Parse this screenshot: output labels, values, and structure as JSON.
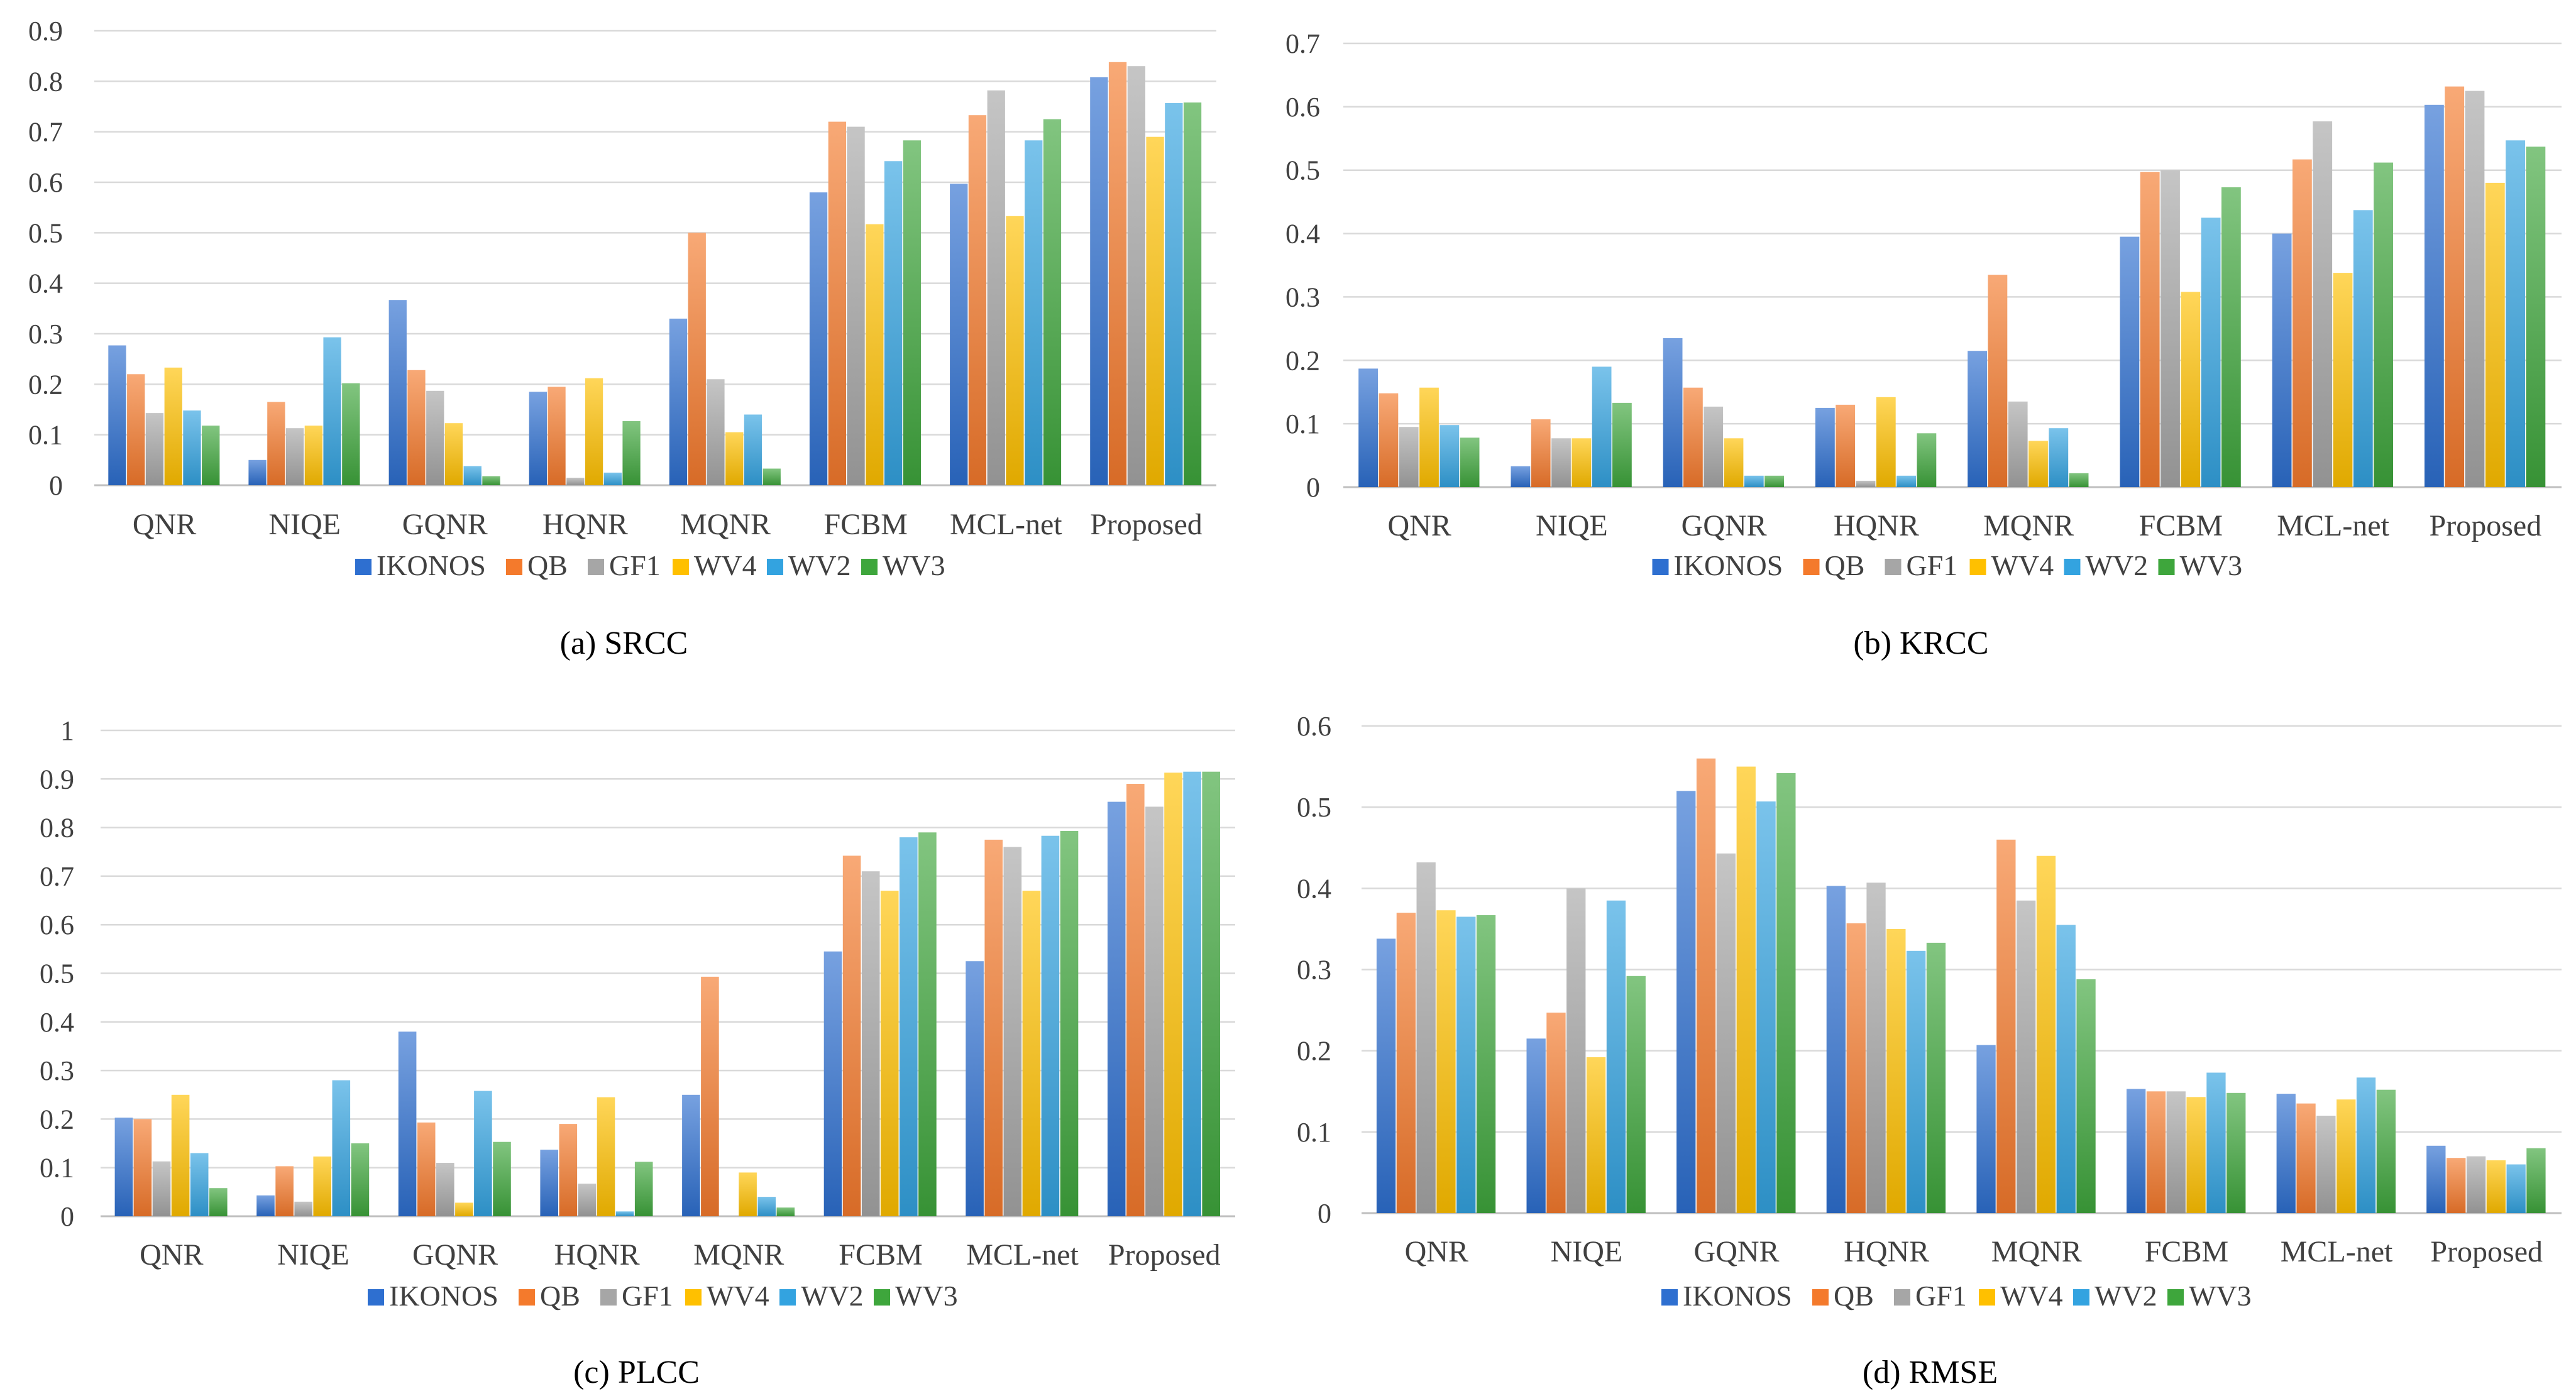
{
  "palette": {
    "IKONOS": "#2e6fd0",
    "QB": "#f47a2c",
    "GF1": "#a6a6a6",
    "WV4": "#ffc000",
    "WV2": "#33a3e0",
    "WV3": "#3ea63c"
  },
  "chart_data": [
    {
      "id": "srcc",
      "type": "bar",
      "caption": "(a) SRCC",
      "categories": [
        "QNR",
        "NIQE",
        "GQNR",
        "HQNR",
        "MQNR",
        "FCBM",
        "MCL-net",
        "Proposed"
      ],
      "ylim": [
        0,
        0.9
      ],
      "yticks": [
        "0",
        "0.1",
        "0.2",
        "0.3",
        "0.4",
        "0.5",
        "0.6",
        "0.7",
        "0.8",
        "0.9"
      ],
      "series": [
        {
          "name": "IKONOS",
          "values": [
            0.277,
            0.05,
            0.367,
            0.185,
            0.33,
            0.58,
            0.597,
            0.808
          ]
        },
        {
          "name": "QB",
          "values": [
            0.22,
            0.165,
            0.228,
            0.195,
            0.5,
            0.72,
            0.733,
            0.838
          ]
        },
        {
          "name": "GF1",
          "values": [
            0.143,
            0.113,
            0.187,
            0.015,
            0.21,
            0.71,
            0.782,
            0.83
          ]
        },
        {
          "name": "WV4",
          "values": [
            0.233,
            0.118,
            0.123,
            0.212,
            0.105,
            0.517,
            0.533,
            0.69
          ]
        },
        {
          "name": "WV2",
          "values": [
            0.148,
            0.293,
            0.038,
            0.025,
            0.14,
            0.642,
            0.683,
            0.757
          ]
        },
        {
          "name": "WV3",
          "values": [
            0.118,
            0.202,
            0.018,
            0.127,
            0.033,
            0.683,
            0.725,
            0.758
          ]
        }
      ]
    },
    {
      "id": "krcc",
      "type": "bar",
      "caption": "(b) KRCC",
      "categories": [
        "QNR",
        "NIQE",
        "GQNR",
        "HQNR",
        "MQNR",
        "FCBM",
        "MCL-net",
        "Proposed"
      ],
      "ylim": [
        0,
        0.7
      ],
      "yticks": [
        "0",
        "0.1",
        "0.2",
        "0.3",
        "0.4",
        "0.5",
        "0.6",
        "0.7"
      ],
      "series": [
        {
          "name": "IKONOS",
          "values": [
            0.187,
            0.033,
            0.235,
            0.125,
            0.215,
            0.395,
            0.4,
            0.603
          ]
        },
        {
          "name": "QB",
          "values": [
            0.148,
            0.107,
            0.157,
            0.13,
            0.335,
            0.497,
            0.517,
            0.632
          ]
        },
        {
          "name": "GF1",
          "values": [
            0.095,
            0.077,
            0.127,
            0.01,
            0.135,
            0.5,
            0.577,
            0.625
          ]
        },
        {
          "name": "WV4",
          "values": [
            0.157,
            0.077,
            0.077,
            0.142,
            0.073,
            0.308,
            0.338,
            0.48
          ]
        },
        {
          "name": "WV2",
          "values": [
            0.098,
            0.19,
            0.018,
            0.018,
            0.093,
            0.425,
            0.437,
            0.547
          ]
        },
        {
          "name": "WV3",
          "values": [
            0.078,
            0.133,
            0.018,
            0.085,
            0.022,
            0.473,
            0.512,
            0.537
          ]
        }
      ]
    },
    {
      "id": "plcc",
      "type": "bar",
      "caption": "(c) PLCC",
      "categories": [
        "QNR",
        "NIQE",
        "GQNR",
        "HQNR",
        "MQNR",
        "FCBM",
        "MCL-net",
        "Proposed"
      ],
      "ylim": [
        0,
        1
      ],
      "yticks": [
        "0",
        "0.1",
        "0.2",
        "0.3",
        "0.4",
        "0.5",
        "0.6",
        "0.7",
        "0.8",
        "0.9",
        "1"
      ],
      "series": [
        {
          "name": "IKONOS",
          "values": [
            0.203,
            0.043,
            0.38,
            0.137,
            0.25,
            0.545,
            0.525,
            0.853
          ]
        },
        {
          "name": "QB",
          "values": [
            0.2,
            0.103,
            0.193,
            0.19,
            0.493,
            0.742,
            0.775,
            0.89
          ]
        },
        {
          "name": "GF1",
          "values": [
            0.113,
            0.03,
            0.11,
            0.067,
            0.0,
            0.71,
            0.76,
            0.843
          ]
        },
        {
          "name": "WV4",
          "values": [
            0.25,
            0.123,
            0.028,
            0.245,
            0.09,
            0.67,
            0.67,
            0.913
          ]
        },
        {
          "name": "WV2",
          "values": [
            0.13,
            0.28,
            0.258,
            0.01,
            0.04,
            0.78,
            0.783,
            0.915
          ]
        },
        {
          "name": "WV3",
          "values": [
            0.058,
            0.15,
            0.153,
            0.112,
            0.018,
            0.79,
            0.793,
            0.915
          ]
        }
      ]
    },
    {
      "id": "rmse",
      "type": "bar",
      "caption": "(d) RMSE",
      "categories": [
        "QNR",
        "NIQE",
        "GQNR",
        "HQNR",
        "MQNR",
        "FCBM",
        "MCL-net",
        "Proposed"
      ],
      "ylim": [
        0,
        0.6
      ],
      "yticks": [
        "0",
        "0.1",
        "0.2",
        "0.3",
        "0.4",
        "0.5",
        "0.6"
      ],
      "series": [
        {
          "name": "IKONOS",
          "values": [
            0.338,
            0.215,
            0.52,
            0.403,
            0.207,
            0.153,
            0.147,
            0.083
          ]
        },
        {
          "name": "QB",
          "values": [
            0.37,
            0.247,
            0.56,
            0.357,
            0.46,
            0.15,
            0.135,
            0.068
          ]
        },
        {
          "name": "GF1",
          "values": [
            0.432,
            0.4,
            0.443,
            0.407,
            0.385,
            0.15,
            0.12,
            0.07
          ]
        },
        {
          "name": "WV4",
          "values": [
            0.373,
            0.192,
            0.55,
            0.35,
            0.44,
            0.143,
            0.14,
            0.065
          ]
        },
        {
          "name": "WV2",
          "values": [
            0.365,
            0.385,
            0.507,
            0.323,
            0.355,
            0.173,
            0.167,
            0.06
          ]
        },
        {
          "name": "WV3",
          "values": [
            0.367,
            0.292,
            0.542,
            0.333,
            0.288,
            0.148,
            0.152,
            0.08
          ]
        }
      ]
    }
  ]
}
